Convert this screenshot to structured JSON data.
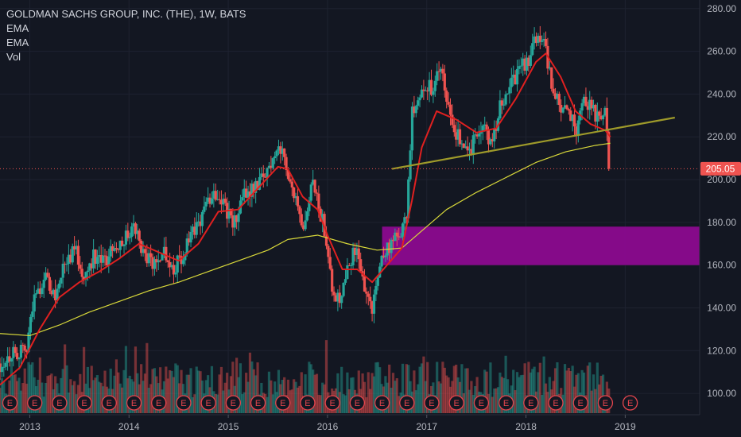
{
  "legend": {
    "title": "GOLDMAN SACHS GROUP, INC. (THE), 1W, BATS",
    "ind1": "EMA",
    "ind2": "EMA",
    "ind3": "Vol"
  },
  "price_tag": "205.05",
  "earnings_marker_label": "E",
  "colors": {
    "background": "#131722",
    "grid": "#1e2230",
    "up": "#26a69a",
    "down": "#ef5350",
    "ema_fast": "#e02020",
    "ema_slow": "#d9d93a",
    "trendline": "#9e9a2a",
    "zone": "#8b0a8f",
    "price_line": "#ef5350"
  },
  "chart_data": {
    "type": "candlestick",
    "title": "GOLDMAN SACHS GROUP, INC. (THE), 1W, BATS",
    "x_tick_labels": [
      "2013",
      "2014",
      "2015",
      "2016",
      "2017",
      "2018",
      "2019"
    ],
    "y_tick_labels": [
      "100.00",
      "120.00",
      "140.00",
      "160.00",
      "180.00",
      "200.00",
      "220.00",
      "240.00",
      "260.00",
      "280.00"
    ],
    "ylim": [
      90,
      284
    ],
    "xlim": [
      2012.7,
      2019.75
    ],
    "last_price": 205.05,
    "close_path": [
      [
        2012.7,
        114
      ],
      [
        2012.85,
        120
      ],
      [
        2012.95,
        118
      ],
      [
        2013.05,
        145
      ],
      [
        2013.15,
        155
      ],
      [
        2013.25,
        145
      ],
      [
        2013.35,
        160
      ],
      [
        2013.45,
        168
      ],
      [
        2013.55,
        155
      ],
      [
        2013.65,
        165
      ],
      [
        2013.75,
        160
      ],
      [
        2013.85,
        170
      ],
      [
        2013.95,
        172
      ],
      [
        2014.05,
        178
      ],
      [
        2014.15,
        165
      ],
      [
        2014.25,
        160
      ],
      [
        2014.35,
        168
      ],
      [
        2014.45,
        158
      ],
      [
        2014.55,
        165
      ],
      [
        2014.65,
        175
      ],
      [
        2014.75,
        185
      ],
      [
        2014.85,
        195
      ],
      [
        2014.95,
        190
      ],
      [
        2015.05,
        178
      ],
      [
        2015.15,
        192
      ],
      [
        2015.25,
        197
      ],
      [
        2015.35,
        200
      ],
      [
        2015.45,
        210
      ],
      [
        2015.5,
        217
      ],
      [
        2015.6,
        205
      ],
      [
        2015.7,
        185
      ],
      [
        2015.75,
        172
      ],
      [
        2015.85,
        198
      ],
      [
        2015.95,
        180
      ],
      [
        2016.0,
        170
      ],
      [
        2016.05,
        150
      ],
      [
        2016.12,
        143
      ],
      [
        2016.2,
        162
      ],
      [
        2016.3,
        166
      ],
      [
        2016.4,
        145
      ],
      [
        2016.45,
        140
      ],
      [
        2016.55,
        165
      ],
      [
        2016.65,
        170
      ],
      [
        2016.75,
        175
      ],
      [
        2016.8,
        185
      ],
      [
        2016.85,
        230
      ],
      [
        2016.95,
        245
      ],
      [
        2017.05,
        242
      ],
      [
        2017.15,
        252
      ],
      [
        2017.2,
        238
      ],
      [
        2017.25,
        226
      ],
      [
        2017.35,
        218
      ],
      [
        2017.45,
        215
      ],
      [
        2017.55,
        225
      ],
      [
        2017.65,
        218
      ],
      [
        2017.75,
        235
      ],
      [
        2017.85,
        245
      ],
      [
        2017.95,
        252
      ],
      [
        2018.05,
        258
      ],
      [
        2018.12,
        270
      ],
      [
        2018.2,
        262
      ],
      [
        2018.25,
        245
      ],
      [
        2018.35,
        232
      ],
      [
        2018.45,
        230
      ],
      [
        2018.5,
        223
      ],
      [
        2018.6,
        237
      ],
      [
        2018.7,
        230
      ],
      [
        2018.75,
        225
      ],
      [
        2018.8,
        232
      ],
      [
        2018.85,
        205.05
      ]
    ],
    "ema_fast": [
      [
        2012.7,
        104
      ],
      [
        2012.9,
        112
      ],
      [
        2013.1,
        130
      ],
      [
        2013.3,
        145
      ],
      [
        2013.5,
        152
      ],
      [
        2013.7,
        157
      ],
      [
        2013.9,
        163
      ],
      [
        2014.1,
        170
      ],
      [
        2014.3,
        166
      ],
      [
        2014.5,
        162
      ],
      [
        2014.7,
        170
      ],
      [
        2014.9,
        185
      ],
      [
        2015.1,
        186
      ],
      [
        2015.3,
        196
      ],
      [
        2015.5,
        206
      ],
      [
        2015.6,
        205
      ],
      [
        2015.75,
        192
      ],
      [
        2015.9,
        186
      ],
      [
        2016.0,
        174
      ],
      [
        2016.15,
        158
      ],
      [
        2016.3,
        158
      ],
      [
        2016.45,
        152
      ],
      [
        2016.6,
        160
      ],
      [
        2016.75,
        168
      ],
      [
        2016.85,
        190
      ],
      [
        2016.95,
        215
      ],
      [
        2017.1,
        232
      ],
      [
        2017.3,
        228
      ],
      [
        2017.5,
        222
      ],
      [
        2017.7,
        224
      ],
      [
        2017.9,
        238
      ],
      [
        2018.1,
        255
      ],
      [
        2018.2,
        259
      ],
      [
        2018.35,
        248
      ],
      [
        2018.5,
        232
      ],
      [
        2018.65,
        226
      ],
      [
        2018.8,
        223
      ],
      [
        2018.85,
        220
      ]
    ],
    "ema_slow": [
      [
        2012.7,
        128
      ],
      [
        2013.0,
        127
      ],
      [
        2013.3,
        132
      ],
      [
        2013.6,
        138
      ],
      [
        2013.9,
        143
      ],
      [
        2014.2,
        148
      ],
      [
        2014.5,
        152
      ],
      [
        2014.8,
        157
      ],
      [
        2015.1,
        162
      ],
      [
        2015.4,
        167
      ],
      [
        2015.6,
        172
      ],
      [
        2015.9,
        174
      ],
      [
        2016.2,
        170
      ],
      [
        2016.5,
        167
      ],
      [
        2016.75,
        168
      ],
      [
        2016.95,
        176
      ],
      [
        2017.2,
        186
      ],
      [
        2017.5,
        194
      ],
      [
        2017.8,
        201
      ],
      [
        2018.1,
        208
      ],
      [
        2018.4,
        213
      ],
      [
        2018.7,
        216
      ],
      [
        2018.85,
        217
      ]
    ],
    "trendline": [
      [
        2016.65,
        205
      ],
      [
        2019.5,
        229
      ]
    ],
    "zone": {
      "x_start": 2016.55,
      "x_end": 2019.75,
      "low": 160,
      "high": 178
    },
    "earnings_events": [
      2012.8,
      2013.05,
      2013.3,
      2013.55,
      2013.8,
      2014.05,
      2014.3,
      2014.55,
      2014.8,
      2015.05,
      2015.3,
      2015.55,
      2015.8,
      2016.05,
      2016.3,
      2016.55,
      2016.8,
      2017.05,
      2017.3,
      2017.55,
      2017.8,
      2018.05,
      2018.3,
      2018.55,
      2018.8,
      2019.05
    ],
    "volume": "per-week bars, scaled relative (no axis values shown)",
    "grid": true
  }
}
